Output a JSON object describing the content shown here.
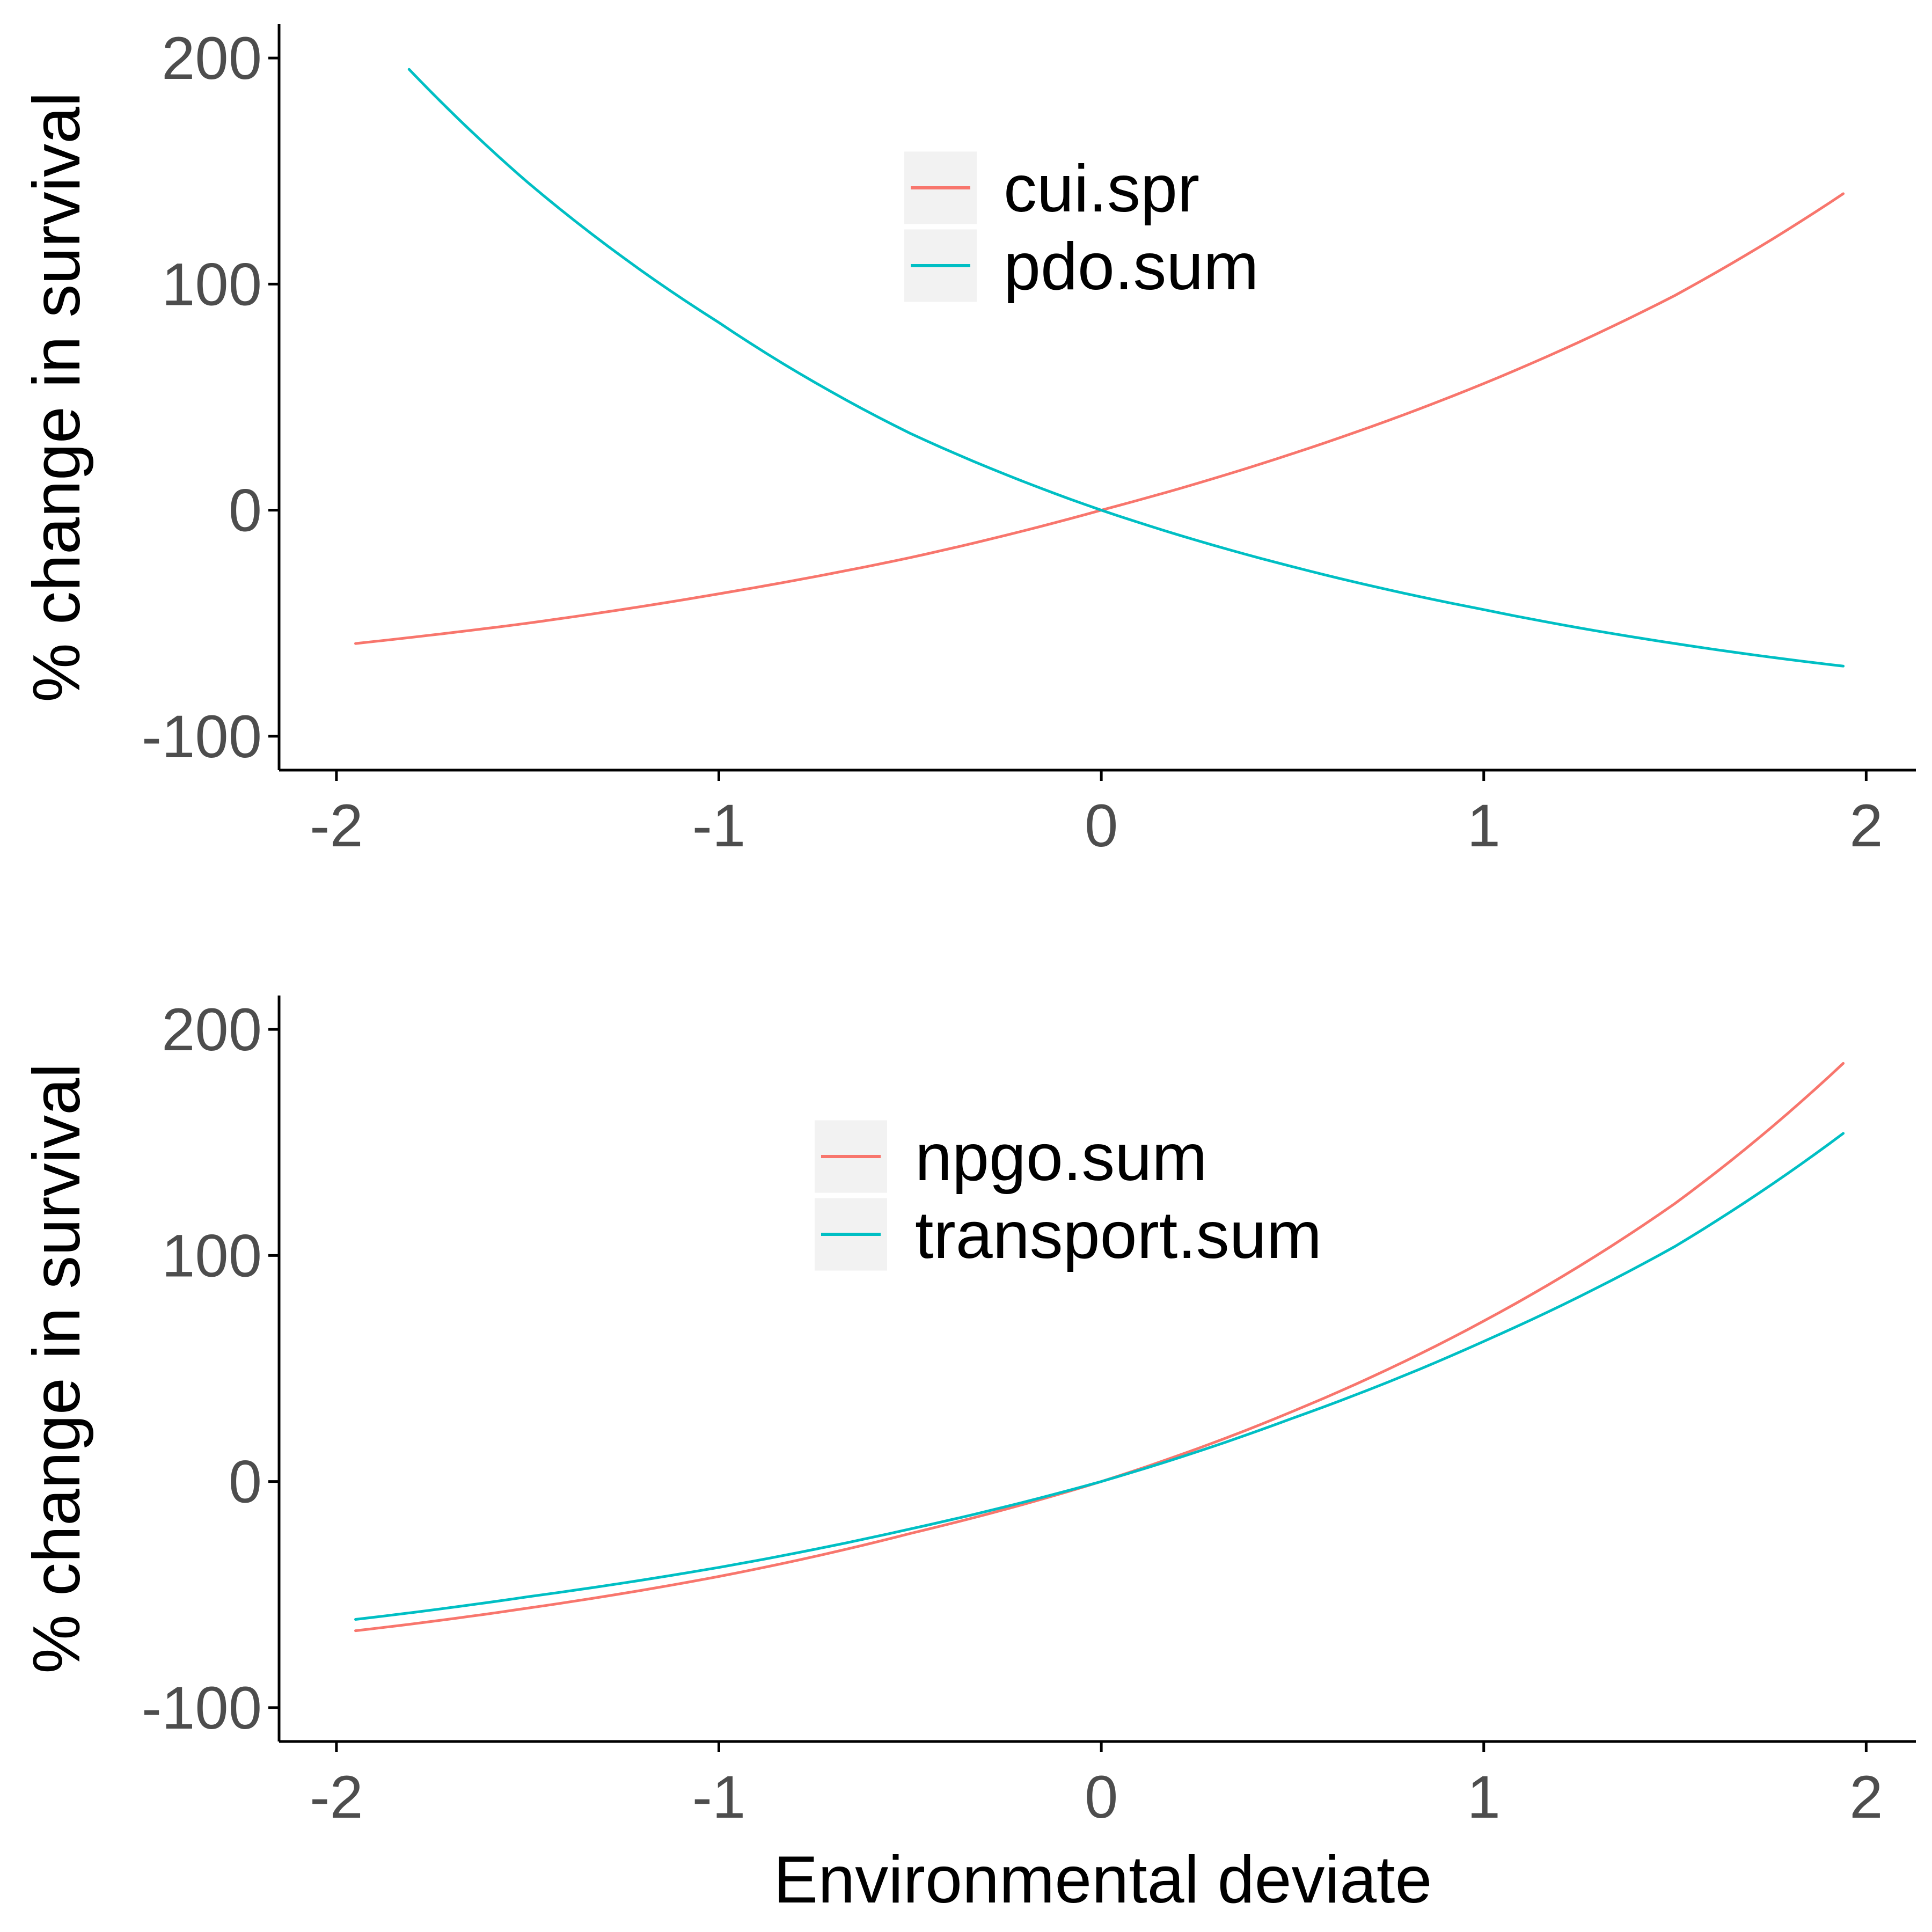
{
  "chart_data": [
    {
      "type": "line",
      "title": "",
      "xlabel": "",
      "ylabel": "% change in survival",
      "xlim": [
        -2.15,
        2.13
      ],
      "ylim": [
        -115,
        215
      ],
      "xticks": [
        -2,
        -1,
        0,
        1,
        2
      ],
      "xtick_labels": [
        "-2",
        "-1",
        "0",
        "1",
        "2"
      ],
      "yticks": [
        -100,
        0,
        100,
        200
      ],
      "ytick_labels": [
        "-100",
        "0",
        "100",
        "200"
      ],
      "grid": false,
      "legend_position": "top-center",
      "series": [
        {
          "name": "cui.spr",
          "color": "#F8766D",
          "x": [
            -1.95,
            -1.5,
            -1.0,
            -0.5,
            0.0,
            0.5,
            1.0,
            1.5,
            1.94
          ],
          "y": [
            -59,
            -50,
            -37,
            -21,
            0,
            25,
            56,
            95,
            140
          ]
        },
        {
          "name": "pdo.sum",
          "color": "#00BFC4",
          "x": [
            -1.81,
            -1.5,
            -1.0,
            -0.5,
            0.0,
            0.5,
            1.0,
            1.5,
            1.94
          ],
          "y": [
            195,
            145,
            83,
            34,
            0,
            -25,
            -44,
            -59,
            -69
          ]
        }
      ]
    },
    {
      "type": "line",
      "title": "",
      "xlabel": "Environmental deviate",
      "ylabel": "% change in survival",
      "xlim": [
        -2.15,
        2.13
      ],
      "ylim": [
        -115,
        215
      ],
      "xticks": [
        -2,
        -1,
        0,
        1,
        2
      ],
      "xtick_labels": [
        "-2",
        "-1",
        "0",
        "1",
        "2"
      ],
      "yticks": [
        -100,
        0,
        100,
        200
      ],
      "ytick_labels": [
        "-100",
        "0",
        "100",
        "200"
      ],
      "grid": false,
      "legend_position": "top-center",
      "series": [
        {
          "name": "npgo.sum",
          "color": "#F8766D",
          "x": [
            -1.95,
            -1.5,
            -1.0,
            -0.5,
            0.0,
            0.5,
            1.0,
            1.5,
            1.94
          ],
          "y": [
            -66,
            -56,
            -42,
            -23,
            0,
            31,
            71,
            123,
            185
          ]
        },
        {
          "name": "transport.sum",
          "color": "#00BFC4",
          "x": [
            -1.95,
            -1.5,
            -1.0,
            -0.5,
            0.0,
            0.5,
            1.0,
            1.5,
            1.94
          ],
          "y": [
            -61,
            -51,
            -38,
            -21,
            0,
            28,
            62,
            104,
            154
          ]
        }
      ]
    }
  ]
}
